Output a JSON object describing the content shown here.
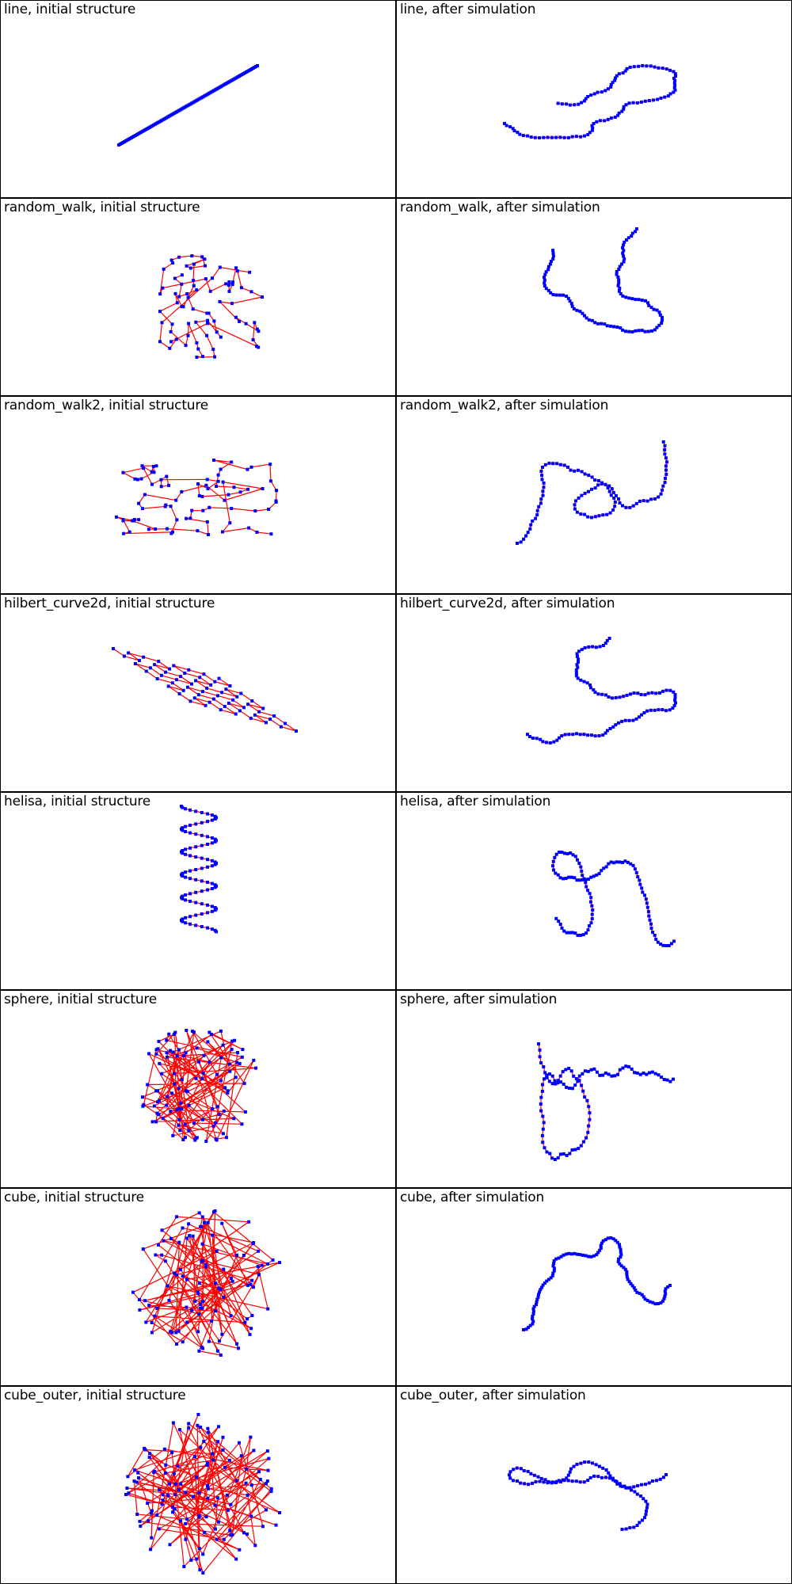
{
  "colors": {
    "bond": "#ff0000",
    "bead": "#0000ff",
    "border": "#000000",
    "background": "#ffffff"
  },
  "panels": [
    {
      "title": "line, initial structure",
      "shape": "line"
    },
    {
      "title": "line, after simulation",
      "shape": "relaxed"
    },
    {
      "title": "random_walk, initial structure",
      "shape": "walk"
    },
    {
      "title": "random_walk, after simulation",
      "shape": "relaxed"
    },
    {
      "title": "random_walk2, initial structure",
      "shape": "walk"
    },
    {
      "title": "random_walk2, after simulation",
      "shape": "relaxed"
    },
    {
      "title": "hilbert_curve2d, initial structure",
      "shape": "hilbert"
    },
    {
      "title": "hilbert_curve2d, after simulation",
      "shape": "relaxed"
    },
    {
      "title": "helisa, initial structure",
      "shape": "helix"
    },
    {
      "title": "helisa, after simulation",
      "shape": "relaxed"
    },
    {
      "title": "sphere, initial structure",
      "shape": "sphere"
    },
    {
      "title": "sphere, after simulation",
      "shape": "relaxed"
    },
    {
      "title": "cube, initial structure",
      "shape": "cube"
    },
    {
      "title": "cube, after simulation",
      "shape": "relaxed"
    },
    {
      "title": "cube_outer, initial structure",
      "shape": "cube"
    },
    {
      "title": "cube_outer, after simulation",
      "shape": "relaxed"
    }
  ]
}
